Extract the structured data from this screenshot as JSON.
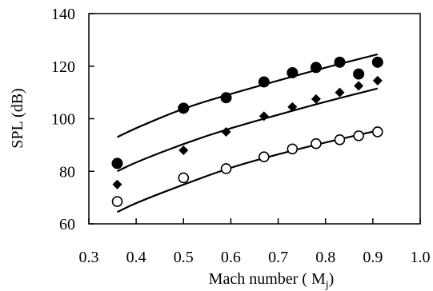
{
  "chart_data": {
    "type": "scatter",
    "xlabel": "Mach number ( M",
    "xlabel_sub": "j",
    "xlabel_close": ")",
    "ylabel": "SPL (dB)",
    "xlim": [
      0.3,
      1.0
    ],
    "ylim": [
      60,
      140
    ],
    "xticks": [
      0.3,
      0.4,
      0.5,
      0.6,
      0.7,
      0.8,
      0.9,
      1.0
    ],
    "xtick_labels": [
      "0.3",
      "0.4",
      "0.5",
      "0.6",
      "0.7",
      "0.8",
      "0.9",
      "1.0"
    ],
    "yticks": [
      60,
      80,
      100,
      120,
      140
    ],
    "ytick_labels": [
      "60",
      "80",
      "100",
      "120",
      "140"
    ],
    "grid": false,
    "legend": "none",
    "series": [
      {
        "marker": "filled-circle",
        "color": "#000000",
        "points": [
          [
            0.36,
            83
          ],
          [
            0.5,
            104
          ],
          [
            0.59,
            108
          ],
          [
            0.67,
            114
          ],
          [
            0.73,
            117.5
          ],
          [
            0.78,
            119.5
          ],
          [
            0.83,
            121.5
          ],
          [
            0.87,
            117
          ],
          [
            0.91,
            121.5
          ]
        ],
        "curve": [
          [
            0.36,
            93
          ],
          [
            0.4,
            96.5
          ],
          [
            0.5,
            104
          ],
          [
            0.6,
            109.5
          ],
          [
            0.7,
            114.5
          ],
          [
            0.8,
            119.5
          ],
          [
            0.91,
            124.5
          ]
        ]
      },
      {
        "marker": "filled-diamond",
        "color": "#000000",
        "points": [
          [
            0.36,
            75
          ],
          [
            0.5,
            88
          ],
          [
            0.59,
            95
          ],
          [
            0.67,
            101
          ],
          [
            0.73,
            104.5
          ],
          [
            0.78,
            107.5
          ],
          [
            0.83,
            110
          ],
          [
            0.87,
            112.5
          ],
          [
            0.91,
            114.5
          ]
        ],
        "curve": [
          [
            0.36,
            80
          ],
          [
            0.4,
            83.5
          ],
          [
            0.5,
            90.5
          ],
          [
            0.6,
            96.5
          ],
          [
            0.7,
            101.5
          ],
          [
            0.8,
            106.5
          ],
          [
            0.91,
            111.5
          ]
        ]
      },
      {
        "marker": "open-circle",
        "color": "#000000",
        "points": [
          [
            0.36,
            68.5
          ],
          [
            0.5,
            77.5
          ],
          [
            0.59,
            81
          ],
          [
            0.67,
            85.5
          ],
          [
            0.73,
            88.5
          ],
          [
            0.78,
            90.5
          ],
          [
            0.83,
            92
          ],
          [
            0.87,
            93.5
          ],
          [
            0.91,
            95
          ]
        ],
        "curve": [
          [
            0.36,
            64.5
          ],
          [
            0.4,
            68
          ],
          [
            0.5,
            75
          ],
          [
            0.6,
            81.5
          ],
          [
            0.7,
            86.5
          ],
          [
            0.8,
            91
          ],
          [
            0.91,
            95.5
          ]
        ]
      }
    ]
  }
}
